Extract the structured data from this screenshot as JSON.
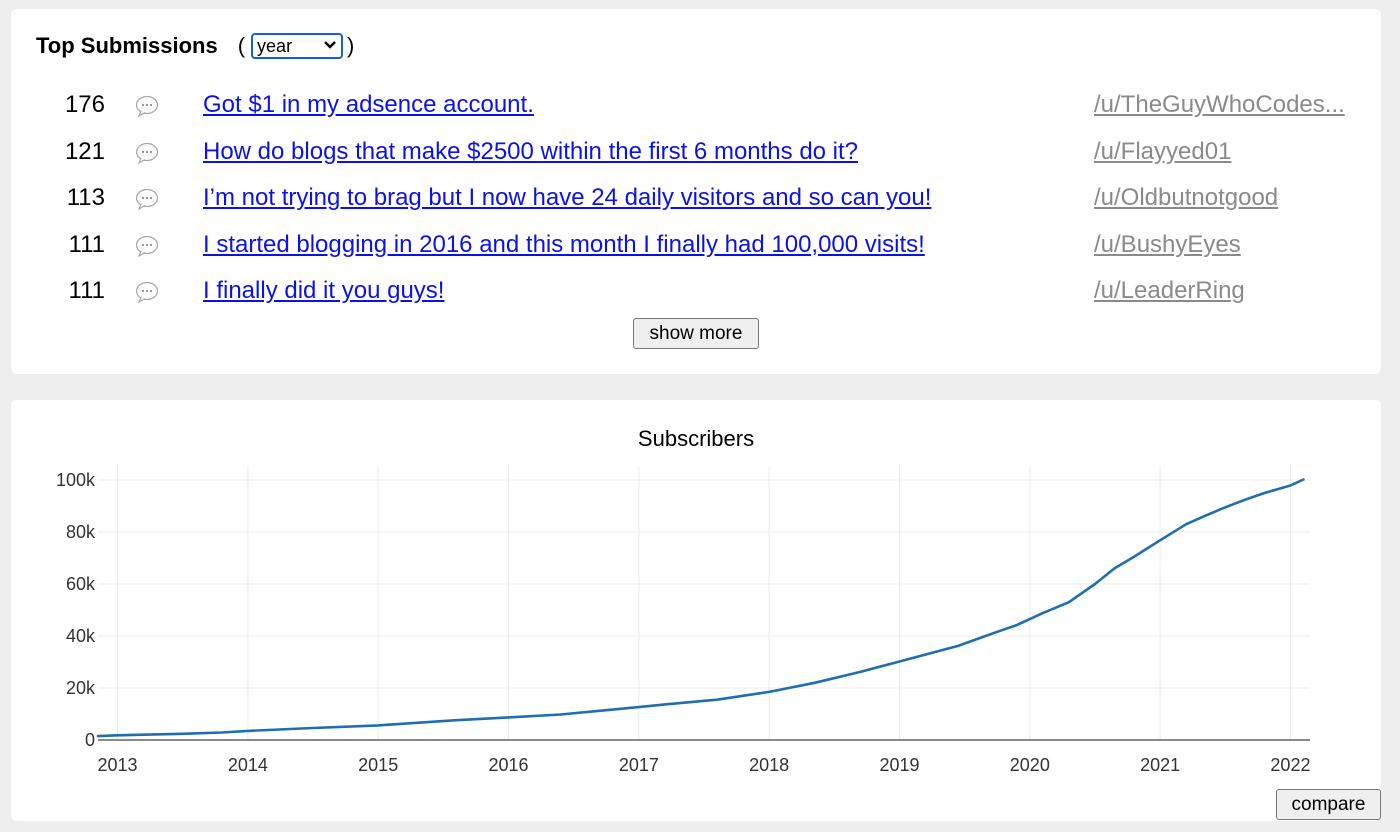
{
  "submissions": {
    "title": "Top Submissions",
    "paren_open": "(",
    "paren_close": ")",
    "period": "year",
    "items": [
      {
        "score": "176",
        "title": "Got $1 in my adsence account.",
        "author": "/u/TheGuyWhoCodes..."
      },
      {
        "score": "121",
        "title": "How do blogs that make $2500 within the first 6 months do it?",
        "author": "/u/Flayyed01"
      },
      {
        "score": "113",
        "title": "I’m not trying to brag but I now have 24 daily visitors and so can you!",
        "author": "/u/Oldbutnotgood"
      },
      {
        "score": "111",
        "title": "I started blogging in 2016 and this month I finally had 100,000 visits!",
        "author": "/u/BushyEyes"
      },
      {
        "score": "111",
        "title": "I finally did it you guys!",
        "author": "/u/LeaderRing"
      }
    ],
    "show_more_label": "show more",
    "comment_icon": "speech-bubble-icon"
  },
  "chart": {
    "compare_label": "compare"
  },
  "colors": {
    "link": "#0b12e8",
    "author": "#8a8a8a",
    "line": "#1f6fb0",
    "select_border": "#1a5fd0"
  },
  "chart_data": {
    "type": "line",
    "title": "Subscribers",
    "xlabel": "",
    "ylabel": "",
    "xlim": [
      2012.85,
      2022.15
    ],
    "ylim": [
      0,
      100000
    ],
    "x_ticks": [
      "2013",
      "2014",
      "2015",
      "2016",
      "2017",
      "2018",
      "2019",
      "2020",
      "2021",
      "2022"
    ],
    "y_ticks": [
      "0",
      "20k",
      "40k",
      "60k",
      "80k",
      "100k"
    ],
    "y_tick_values": [
      0,
      20000,
      40000,
      60000,
      80000,
      100000
    ],
    "grid": true,
    "series": [
      {
        "x": [
          2012.85,
          2013.0,
          2013.5,
          2013.8,
          2014.0,
          2014.5,
          2015.0,
          2015.6,
          2016.0,
          2016.4,
          2016.8,
          2017.2,
          2017.6,
          2018.0,
          2018.35,
          2018.7,
          2019.0,
          2019.45,
          2019.75,
          2019.9,
          2020.1,
          2020.3,
          2020.5,
          2020.65,
          2020.8,
          2021.0,
          2021.2,
          2021.35,
          2021.5,
          2021.65,
          2021.8,
          2022.0,
          2022.1
        ],
        "y": [
          1500,
          1800,
          2400,
          2900,
          3500,
          4600,
          5600,
          7600,
          8700,
          9800,
          11700,
          13700,
          15500,
          18500,
          22000,
          26200,
          30200,
          36200,
          41600,
          44200,
          48800,
          53000,
          60000,
          66000,
          70500,
          76800,
          83000,
          86300,
          89500,
          92400,
          95000,
          97900,
          100200
        ]
      }
    ]
  }
}
